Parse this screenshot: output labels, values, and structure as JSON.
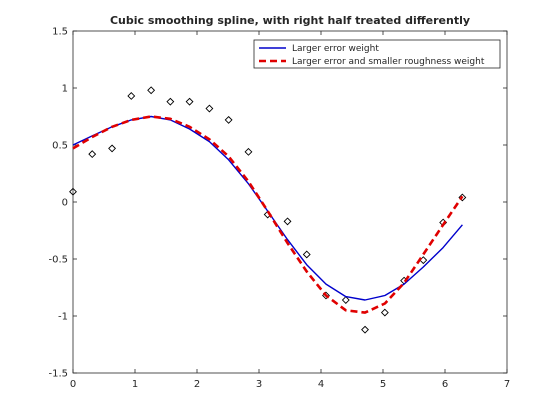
{
  "chart_data": {
    "type": "line",
    "title": "Cubic smoothing spline, with right half treated differently",
    "xlabel": "",
    "ylabel": "",
    "xlim": [
      0,
      7
    ],
    "ylim": [
      -1.5,
      1.5
    ],
    "xticks": [
      0,
      1,
      2,
      3,
      4,
      5,
      6,
      7
    ],
    "yticks": [
      -1.5,
      -1,
      -0.5,
      0,
      0.5,
      1,
      1.5
    ],
    "xtick_labels": [
      "0",
      "1",
      "2",
      "3",
      "4",
      "5",
      "6",
      "7"
    ],
    "ytick_labels": [
      "-1.5",
      "-1",
      "-0.5",
      "0",
      "0.5",
      "1",
      "1.5"
    ],
    "grid": false,
    "box": true,
    "legend_location": "top-right",
    "series": [
      {
        "name": "data",
        "kind": "scatter",
        "marker": "diamond",
        "color": "#000000",
        "show_in_legend": false,
        "x": [
          0.0,
          0.31,
          0.63,
          0.94,
          1.26,
          1.57,
          1.88,
          2.2,
          2.51,
          2.83,
          3.14,
          3.46,
          3.77,
          4.08,
          4.4,
          4.71,
          5.03,
          5.34,
          5.65,
          5.97,
          6.28
        ],
        "y": [
          0.09,
          0.42,
          0.47,
          0.93,
          0.98,
          0.88,
          0.88,
          0.82,
          0.72,
          0.44,
          -0.11,
          -0.17,
          -0.46,
          -0.82,
          -0.86,
          -1.12,
          -0.97,
          -0.69,
          -0.51,
          -0.18,
          0.04
        ]
      },
      {
        "name": "Larger error weight",
        "kind": "line",
        "color": "#0000cc",
        "dash": "solid",
        "x": [
          0.0,
          0.31,
          0.63,
          0.94,
          1.26,
          1.57,
          1.88,
          2.2,
          2.51,
          2.83,
          3.14,
          3.46,
          3.77,
          4.08,
          4.4,
          4.71,
          5.03,
          5.34,
          5.65,
          5.97,
          6.28
        ],
        "y": [
          0.5,
          0.58,
          0.66,
          0.72,
          0.75,
          0.72,
          0.64,
          0.53,
          0.37,
          0.16,
          -0.08,
          -0.33,
          -0.55,
          -0.72,
          -0.83,
          -0.86,
          -0.82,
          -0.72,
          -0.57,
          -0.4,
          -0.2
        ]
      },
      {
        "name": "Larger error and smaller roughness weight",
        "kind": "line",
        "color": "#e00000",
        "dash": "dashed",
        "x": [
          0.0,
          0.31,
          0.63,
          0.94,
          1.26,
          1.57,
          1.88,
          2.2,
          2.51,
          2.83,
          3.14,
          3.46,
          3.77,
          4.08,
          4.4,
          4.71,
          5.03,
          5.34,
          5.65,
          5.97,
          6.28
        ],
        "y": [
          0.47,
          0.57,
          0.66,
          0.72,
          0.75,
          0.73,
          0.66,
          0.55,
          0.4,
          0.18,
          -0.08,
          -0.36,
          -0.61,
          -0.82,
          -0.95,
          -0.97,
          -0.89,
          -0.71,
          -0.46,
          -0.2,
          0.05
        ]
      }
    ]
  }
}
